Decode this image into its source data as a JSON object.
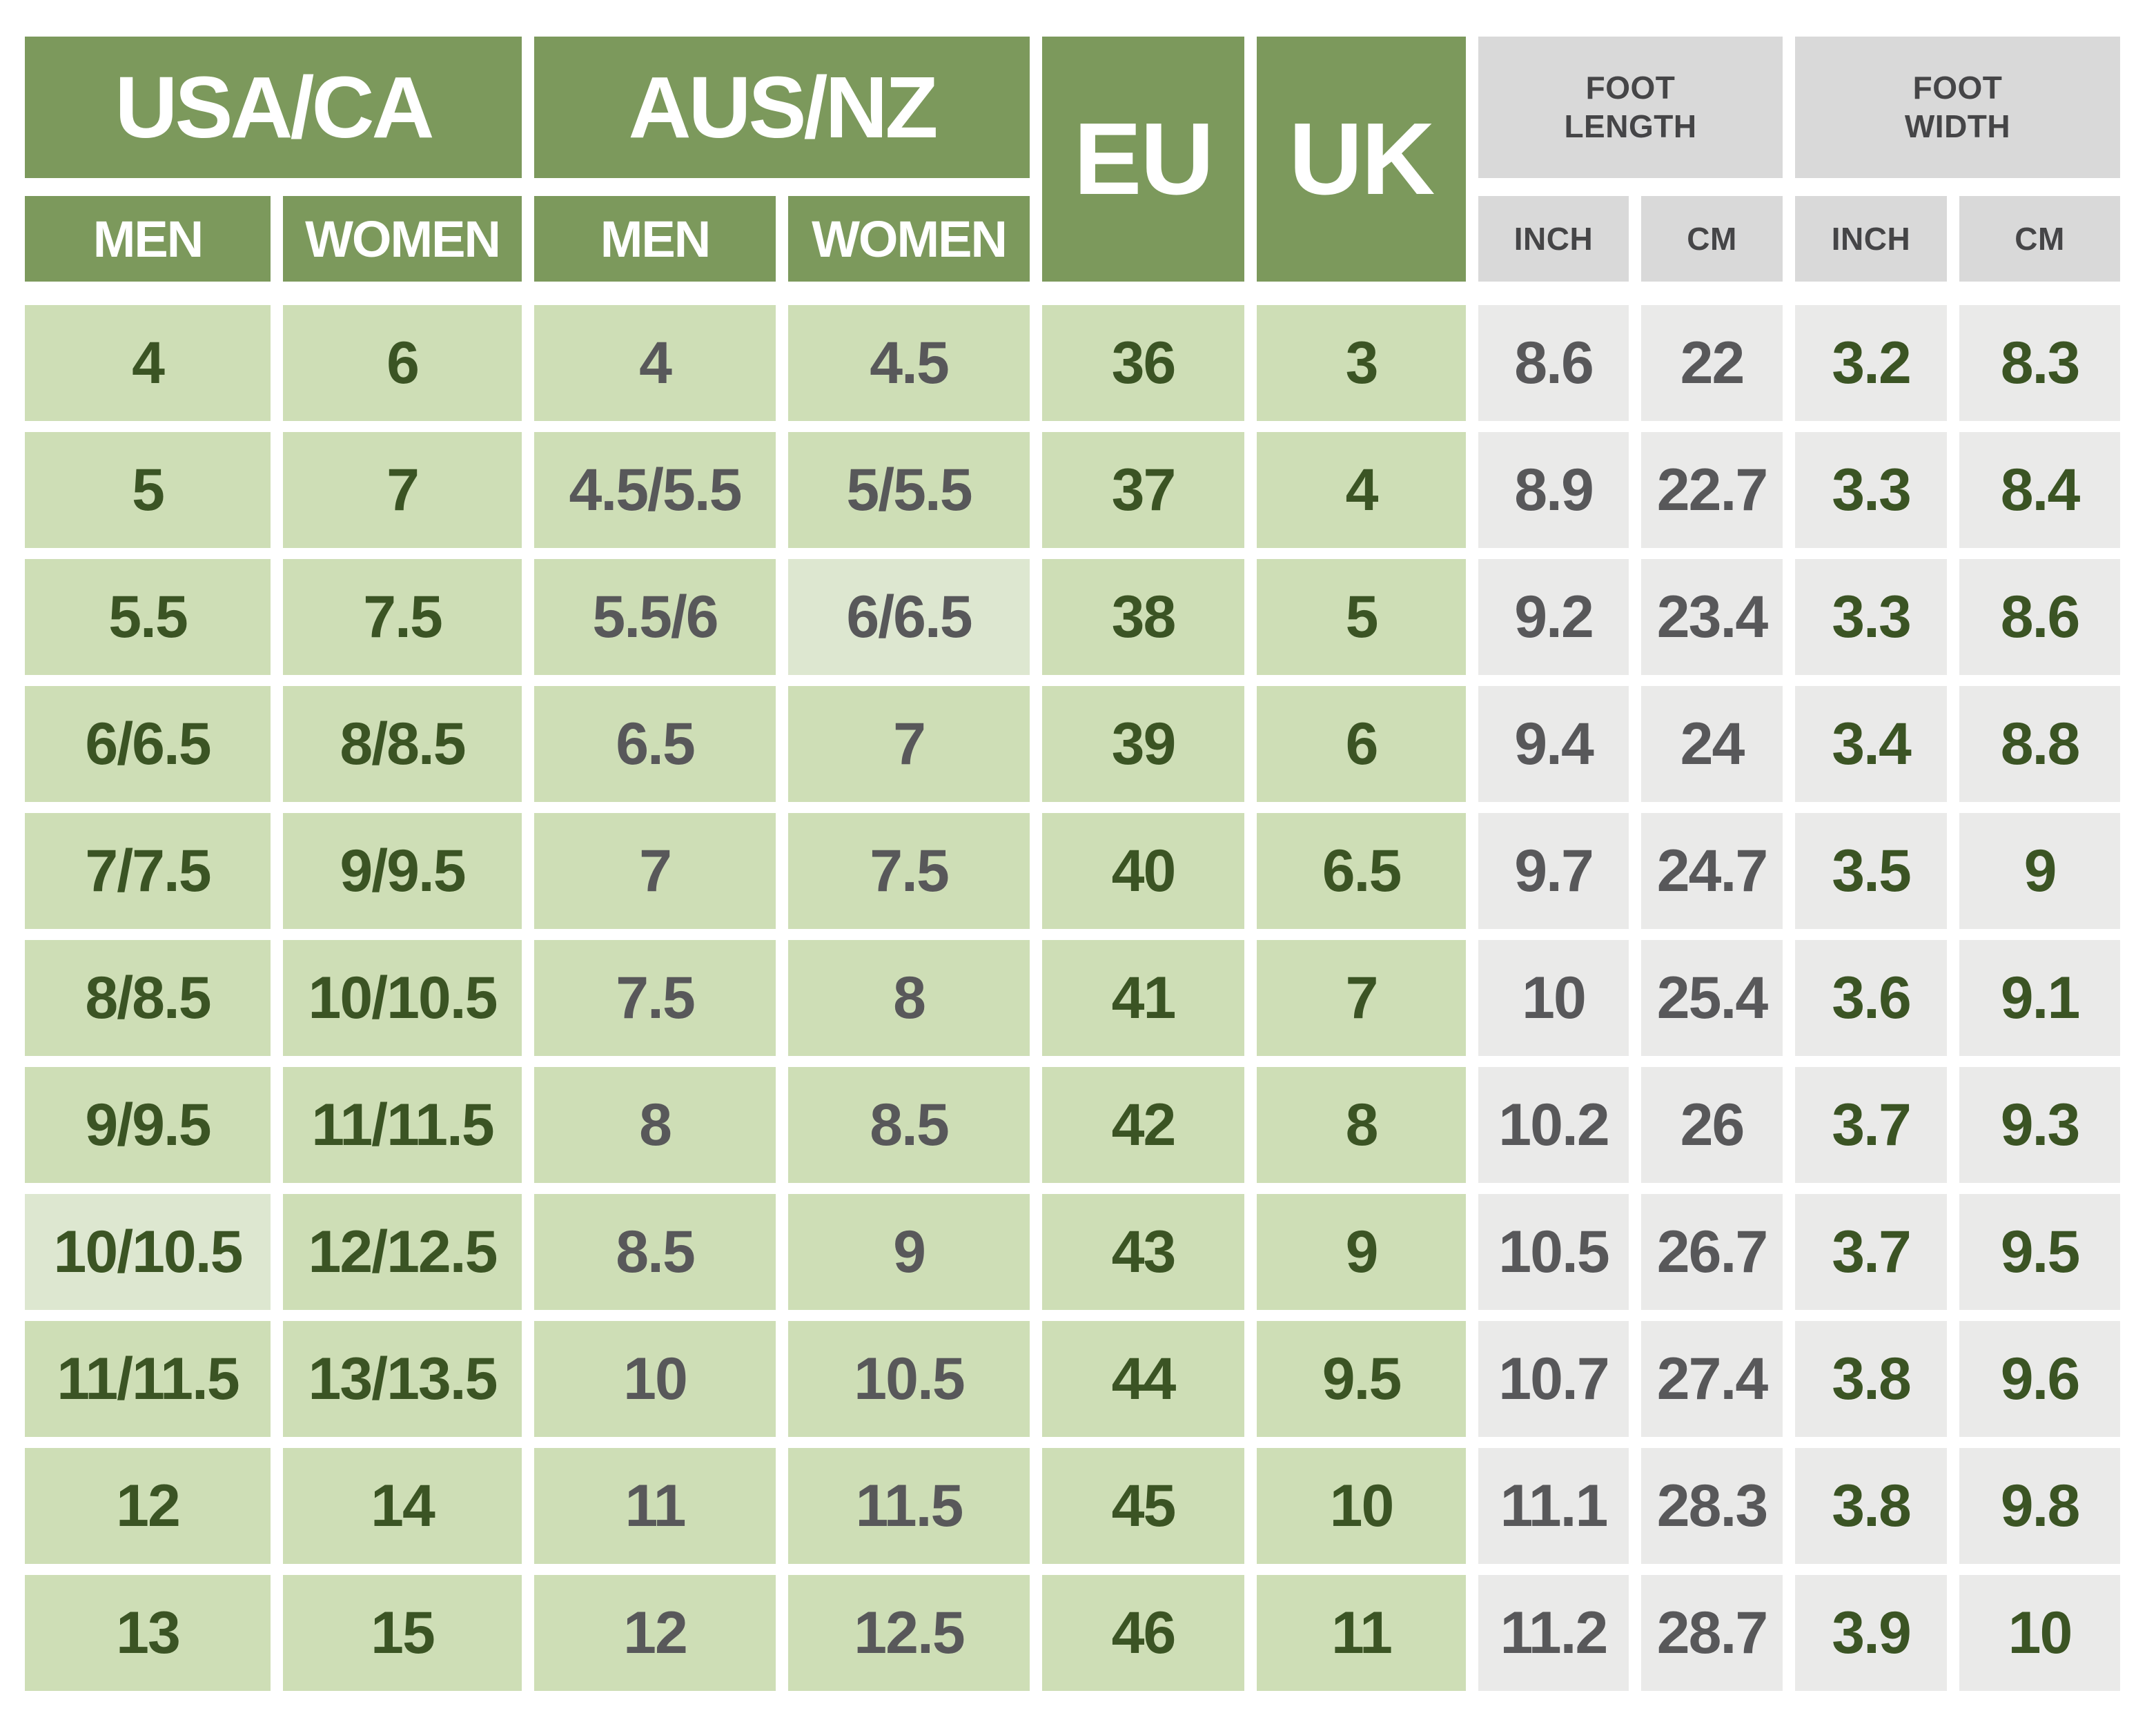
{
  "chart_data": {
    "type": "table",
    "column_groups": [
      {
        "label": "USA/CA",
        "sub_columns": [
          "MEN",
          "WOMEN"
        ]
      },
      {
        "label": "AUS/NZ",
        "sub_columns": [
          "MEN",
          "WOMEN"
        ]
      },
      {
        "label": "EU",
        "sub_columns": []
      },
      {
        "label": "UK",
        "sub_columns": []
      },
      {
        "label": "FOOT LENGTH",
        "sub_columns": [
          "INCH",
          "CM"
        ]
      },
      {
        "label": "FOOT WIDTH",
        "sub_columns": [
          "INCH",
          "CM"
        ]
      }
    ],
    "columns": [
      {
        "id": "usa_men",
        "group": "USA/CA",
        "sub": "MEN",
        "bg": "green",
        "text": "dark_green"
      },
      {
        "id": "usa_women",
        "group": "USA/CA",
        "sub": "WOMEN",
        "bg": "green",
        "text": "dark_green"
      },
      {
        "id": "aus_men",
        "group": "AUS/NZ",
        "sub": "MEN",
        "bg": "green",
        "text": "gray"
      },
      {
        "id": "aus_women",
        "group": "AUS/NZ",
        "sub": "WOMEN",
        "bg": "green",
        "text": "gray"
      },
      {
        "id": "eu",
        "group": "EU",
        "sub": "",
        "bg": "green",
        "text": "dark_green"
      },
      {
        "id": "uk",
        "group": "UK",
        "sub": "",
        "bg": "green",
        "text": "dark_green"
      },
      {
        "id": "length_inch",
        "group": "FOOT LENGTH",
        "sub": "INCH",
        "bg": "gray",
        "text": "gray"
      },
      {
        "id": "length_cm",
        "group": "FOOT LENGTH",
        "sub": "CM",
        "bg": "gray",
        "text": "gray"
      },
      {
        "id": "width_inch",
        "group": "FOOT WIDTH",
        "sub": "INCH",
        "bg": "gray",
        "text": "dark_green"
      },
      {
        "id": "width_cm",
        "group": "FOOT WIDTH",
        "sub": "CM",
        "bg": "gray",
        "text": "dark_green"
      }
    ],
    "rows": [
      [
        "4",
        "6",
        "4",
        "4.5",
        "36",
        "3",
        "8.6",
        "22",
        "3.2",
        "8.3"
      ],
      [
        "5",
        "7",
        "4.5/5.5",
        "5/5.5",
        "37",
        "4",
        "8.9",
        "22.7",
        "3.3",
        "8.4"
      ],
      [
        "5.5",
        "7.5",
        "5.5/6",
        "6/6.5",
        "38",
        "5",
        "9.2",
        "23.4",
        "3.3",
        "8.6"
      ],
      [
        "6/6.5",
        "8/8.5",
        "6.5",
        "7",
        "39",
        "6",
        "9.4",
        "24",
        "3.4",
        "8.8"
      ],
      [
        "7/7.5",
        "9/9.5",
        "7",
        "7.5",
        "40",
        "6.5",
        "9.7",
        "24.7",
        "3.5",
        "9"
      ],
      [
        "8/8.5",
        "10/10.5",
        "7.5",
        "8",
        "41",
        "7",
        "10",
        "25.4",
        "3.6",
        "9.1"
      ],
      [
        "9/9.5",
        "11/11.5",
        "8",
        "8.5",
        "42",
        "8",
        "10.2",
        "26",
        "3.7",
        "9.3"
      ],
      [
        "10/10.5",
        "12/12.5",
        "8.5",
        "9",
        "43",
        "9",
        "10.5",
        "26.7",
        "3.7",
        "9.5"
      ],
      [
        "11/11.5",
        "13/13.5",
        "10",
        "10.5",
        "44",
        "9.5",
        "10.7",
        "27.4",
        "3.8",
        "9.6"
      ],
      [
        "12",
        "14",
        "11",
        "11.5",
        "45",
        "10",
        "11.1",
        "28.3",
        "3.8",
        "9.8"
      ],
      [
        "13",
        "15",
        "12",
        "12.5",
        "46",
        "11",
        "11.2",
        "28.7",
        "3.9",
        "10"
      ]
    ],
    "highlight_cells": [
      {
        "row": 2,
        "col": 3
      },
      {
        "row": 7,
        "col": 0
      }
    ],
    "layout_hints": {
      "legend": "none",
      "grid": "white gaps between cells"
    }
  },
  "colors": {
    "header_green": "#7c995c",
    "cell_green": "#cedeb6",
    "cell_green_light": "#dde7d0",
    "header_gray": "#d9d9d9",
    "cell_gray": "#eaeae9",
    "text_dark_green": "#3b5424",
    "text_gray": "#58585a",
    "unit_text": "#454547",
    "text_white": "#ffffff"
  }
}
